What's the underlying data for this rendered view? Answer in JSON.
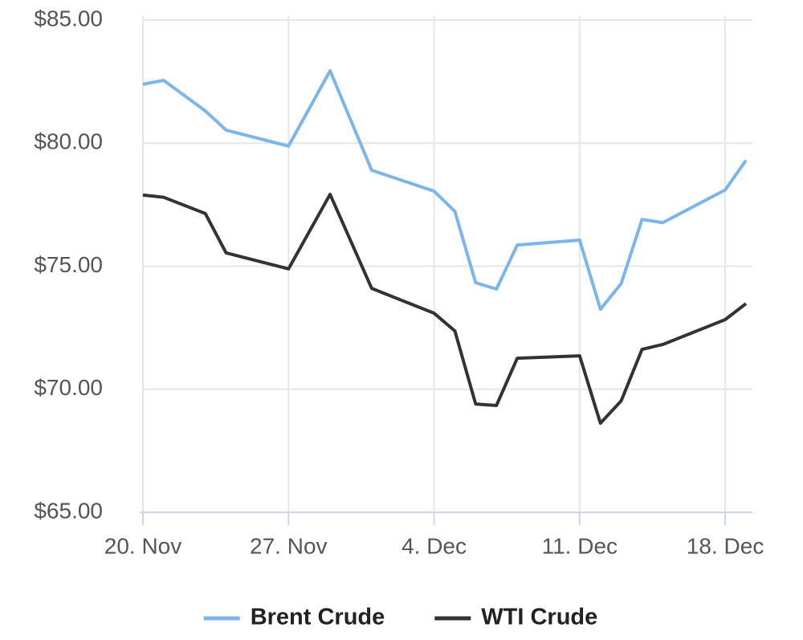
{
  "chart_data": {
    "type": "line",
    "x": [
      "20. Nov",
      "21. Nov",
      "23. Nov",
      "24. Nov",
      "27. Nov",
      "29. Nov",
      "1. Dec",
      "4. Dec",
      "5. Dec",
      "6. Dec",
      "7. Dec",
      "8. Dec",
      "11. Dec",
      "12. Dec",
      "13. Dec",
      "14. Dec",
      "15. Dec",
      "18. Dec",
      "19. Dec"
    ],
    "series": [
      {
        "name": "Brent Crude",
        "color": "#7cb5ec",
        "values": [
          82.39,
          82.55,
          81.31,
          80.53,
          79.88,
          82.94,
          78.9,
          78.05,
          77.23,
          74.33,
          74.07,
          75.86,
          76.06,
          73.25,
          74.3,
          76.9,
          76.77,
          78.1,
          79.3
        ]
      },
      {
        "name": "WTI Crude",
        "color": "#333333",
        "values": [
          77.89,
          77.8,
          77.14,
          75.54,
          74.89,
          77.92,
          74.1,
          73.09,
          72.37,
          69.4,
          69.34,
          71.26,
          71.36,
          68.62,
          69.53,
          71.62,
          71.82,
          72.83,
          73.48
        ]
      }
    ],
    "xlim": [
      "20. Nov",
      "19. Dec"
    ],
    "xticks": [
      "20. Nov",
      "27. Nov",
      "4. Dec",
      "11. Dec",
      "18. Dec"
    ],
    "ylim": [
      65,
      85
    ],
    "yticks": [
      {
        "value": 65,
        "label": "$65.00"
      },
      {
        "value": 70,
        "label": "$70.00"
      },
      {
        "value": 75,
        "label": "$75.00"
      },
      {
        "value": 80,
        "label": "$80.00"
      },
      {
        "value": 85,
        "label": "$85.00"
      }
    ],
    "grid": true,
    "legend": "bottom"
  }
}
